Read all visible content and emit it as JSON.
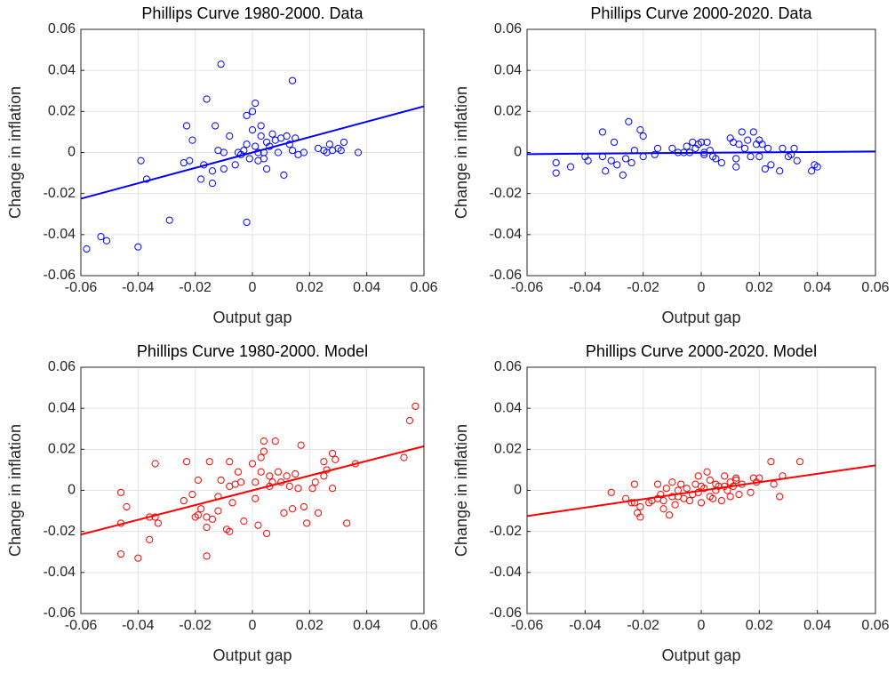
{
  "chart_data": [
    {
      "type": "scatter",
      "title": "Phillips Curve 1980-2000. Data",
      "x_label": "Output gap",
      "y_label": "Change in inflation",
      "xlim": [
        -0.06,
        0.06
      ],
      "ylim": [
        -0.06,
        0.06
      ],
      "xticks": [
        -0.06,
        -0.04,
        -0.02,
        0,
        0.02,
        0.04,
        0.06
      ],
      "yticks": [
        -0.06,
        -0.04,
        -0.02,
        0,
        0.02,
        0.04,
        0.06
      ],
      "grid": true,
      "points": {
        "color": "#0000ff",
        "x": [
          -0.058,
          -0.053,
          -0.051,
          -0.04,
          -0.039,
          -0.037,
          -0.029,
          -0.024,
          -0.023,
          -0.022,
          -0.021,
          -0.018,
          -0.017,
          -0.016,
          -0.014,
          -0.014,
          -0.013,
          -0.012,
          -0.011,
          -0.01,
          -0.01,
          -0.008,
          -0.006,
          -0.005,
          -0.004,
          -0.003,
          -0.002,
          -0.002,
          -0.002,
          -0.001,
          0.0,
          0.0,
          0.001,
          0.001,
          0.002,
          0.002,
          0.003,
          0.003,
          0.004,
          0.004,
          0.005,
          0.005,
          0.006,
          0.007,
          0.008,
          0.009,
          0.01,
          0.011,
          0.012,
          0.013,
          0.014,
          0.014,
          0.015,
          0.016,
          0.018,
          0.023,
          0.025,
          0.026,
          0.027,
          0.028,
          0.03,
          0.031,
          0.032,
          0.037
        ],
        "y": [
          -0.047,
          -0.041,
          -0.043,
          -0.046,
          -0.004,
          -0.013,
          -0.033,
          -0.005,
          0.013,
          -0.004,
          0.006,
          -0.013,
          -0.006,
          0.026,
          -0.015,
          -0.009,
          0.013,
          0.001,
          0.043,
          0.0,
          -0.008,
          0.008,
          -0.006,
          0.0,
          -0.001,
          0.001,
          0.018,
          -0.034,
          0.004,
          -0.003,
          0.011,
          0.02,
          0.024,
          0.003,
          0.0,
          -0.004,
          0.013,
          0.008,
          0.0,
          -0.003,
          0.005,
          -0.008,
          0.003,
          0.009,
          0.006,
          0.0,
          0.007,
          -0.011,
          0.008,
          0.004,
          0.035,
          0.001,
          0.007,
          -0.001,
          0.0,
          0.002,
          0.001,
          0.0,
          0.004,
          0.001,
          0.002,
          0.001,
          0.005,
          0.0
        ]
      },
      "fit": {
        "color": "#0000ff",
        "x": [
          -0.06,
          0.06
        ],
        "y": [
          -0.0225,
          0.0225
        ]
      }
    },
    {
      "type": "scatter",
      "title": "Phillips Curve 2000-2020. Data",
      "x_label": "Output gap",
      "y_label": "Change in inflation",
      "xlim": [
        -0.06,
        0.06
      ],
      "ylim": [
        -0.06,
        0.06
      ],
      "xticks": [
        -0.06,
        -0.04,
        -0.02,
        0,
        0.02,
        0.04,
        0.06
      ],
      "yticks": [
        -0.06,
        -0.04,
        -0.02,
        0,
        0.02,
        0.04,
        0.06
      ],
      "grid": true,
      "points": {
        "color": "#0000ff",
        "x": [
          -0.05,
          -0.05,
          -0.045,
          -0.04,
          -0.039,
          -0.034,
          -0.034,
          -0.033,
          -0.031,
          -0.03,
          -0.029,
          -0.027,
          -0.026,
          -0.025,
          -0.024,
          -0.023,
          -0.021,
          -0.02,
          -0.02,
          -0.016,
          -0.015,
          -0.01,
          -0.008,
          -0.006,
          -0.005,
          -0.004,
          -0.003,
          -0.002,
          -0.001,
          0.0,
          0.001,
          0.001,
          0.002,
          0.003,
          0.004,
          0.005,
          0.007,
          0.01,
          0.011,
          0.012,
          0.012,
          0.013,
          0.014,
          0.015,
          0.016,
          0.017,
          0.018,
          0.019,
          0.02,
          0.02,
          0.021,
          0.022,
          0.023,
          0.024,
          0.027,
          0.028,
          0.03,
          0.031,
          0.032,
          0.033,
          0.038,
          0.039,
          0.04
        ],
        "y": [
          -0.005,
          -0.01,
          -0.007,
          -0.002,
          -0.004,
          0.01,
          -0.002,
          -0.009,
          -0.004,
          0.005,
          -0.006,
          -0.011,
          -0.003,
          0.015,
          -0.005,
          0.001,
          0.011,
          0.008,
          -0.002,
          -0.001,
          0.002,
          0.002,
          0.0,
          0.0,
          0.003,
          0.0,
          0.005,
          0.002,
          0.004,
          0.005,
          0.0,
          -0.001,
          0.005,
          0.001,
          -0.002,
          -0.003,
          -0.005,
          0.007,
          0.005,
          -0.003,
          -0.007,
          0.004,
          0.01,
          0.002,
          0.006,
          -0.002,
          0.01,
          0.004,
          -0.002,
          0.006,
          0.004,
          -0.008,
          0.002,
          -0.006,
          -0.009,
          0.002,
          -0.002,
          -0.001,
          0.002,
          -0.004,
          -0.009,
          -0.006,
          -0.007
        ]
      },
      "fit": {
        "color": "#0000ff",
        "x": [
          -0.06,
          0.06
        ],
        "y": [
          -0.0008,
          0.0005
        ]
      }
    },
    {
      "type": "scatter",
      "title": "Phillips Curve 1980-2000. Model",
      "x_label": "Output gap",
      "y_label": "Change in inflation",
      "xlim": [
        -0.06,
        0.06
      ],
      "ylim": [
        -0.06,
        0.06
      ],
      "xticks": [
        -0.06,
        -0.04,
        -0.02,
        0,
        0.02,
        0.04,
        0.06
      ],
      "yticks": [
        -0.06,
        -0.04,
        -0.02,
        0,
        0.02,
        0.04,
        0.06
      ],
      "grid": true,
      "points": {
        "color": "#ff0000",
        "x": [
          -0.046,
          -0.046,
          -0.046,
          -0.044,
          -0.04,
          -0.036,
          -0.036,
          -0.034,
          -0.034,
          -0.033,
          -0.024,
          -0.023,
          -0.021,
          -0.02,
          -0.019,
          -0.019,
          -0.018,
          -0.016,
          -0.016,
          -0.016,
          -0.015,
          -0.014,
          -0.012,
          -0.012,
          -0.011,
          -0.009,
          -0.008,
          -0.008,
          -0.008,
          -0.007,
          -0.006,
          -0.005,
          -0.004,
          -0.003,
          0.0,
          0.001,
          0.001,
          0.002,
          0.003,
          0.003,
          0.004,
          0.004,
          0.005,
          0.006,
          0.006,
          0.007,
          0.008,
          0.009,
          0.01,
          0.011,
          0.012,
          0.013,
          0.014,
          0.015,
          0.016,
          0.017,
          0.018,
          0.019,
          0.021,
          0.022,
          0.023,
          0.025,
          0.025,
          0.026,
          0.028,
          0.028,
          0.029,
          0.033,
          0.036,
          0.053,
          0.055,
          0.057
        ],
        "y": [
          -0.001,
          -0.016,
          -0.031,
          -0.008,
          -0.033,
          -0.013,
          -0.024,
          0.013,
          -0.013,
          -0.016,
          -0.005,
          0.014,
          -0.002,
          -0.013,
          -0.012,
          0.005,
          -0.009,
          -0.018,
          -0.032,
          -0.013,
          0.014,
          -0.014,
          -0.003,
          -0.01,
          0.005,
          -0.019,
          -0.02,
          0.014,
          0.002,
          -0.006,
          0.003,
          0.009,
          0.004,
          -0.015,
          0.013,
          0.004,
          -0.004,
          -0.017,
          0.009,
          0.016,
          0.024,
          0.019,
          -0.021,
          0.002,
          0.007,
          0.004,
          0.024,
          0.009,
          0.004,
          -0.011,
          0.007,
          0.002,
          -0.009,
          0.008,
          0.001,
          0.022,
          -0.008,
          -0.016,
          0.001,
          0.004,
          -0.011,
          0.014,
          0.007,
          0.01,
          0.018,
          0.001,
          0.015,
          -0.016,
          0.013,
          0.016,
          0.034,
          0.041
        ]
      },
      "fit": {
        "color": "#ff0000",
        "x": [
          -0.06,
          0.06
        ],
        "y": [
          -0.0215,
          0.0215
        ]
      }
    },
    {
      "type": "scatter",
      "title": "Phillips Curve 2000-2020. Model",
      "x_label": "Output gap",
      "y_label": "Change in inflation",
      "xlim": [
        -0.06,
        0.06
      ],
      "ylim": [
        -0.06,
        0.06
      ],
      "xticks": [
        -0.06,
        -0.04,
        -0.02,
        0,
        0.02,
        0.04,
        0.06
      ],
      "yticks": [
        -0.06,
        -0.04,
        -0.02,
        0,
        0.02,
        0.04,
        0.06
      ],
      "grid": true,
      "points": {
        "color": "#ff0000",
        "x": [
          -0.031,
          -0.026,
          -0.024,
          -0.023,
          -0.023,
          -0.022,
          -0.021,
          -0.021,
          -0.018,
          -0.017,
          -0.015,
          -0.015,
          -0.014,
          -0.013,
          -0.013,
          -0.012,
          -0.011,
          -0.01,
          -0.01,
          -0.009,
          -0.008,
          -0.008,
          -0.007,
          -0.006,
          -0.005,
          -0.004,
          -0.003,
          -0.002,
          -0.001,
          -0.001,
          0.0,
          0.0,
          0.001,
          0.002,
          0.003,
          0.003,
          0.004,
          0.005,
          0.005,
          0.006,
          0.007,
          0.008,
          0.008,
          0.009,
          0.01,
          0.01,
          0.011,
          0.012,
          0.012,
          0.013,
          0.014,
          0.017,
          0.018,
          0.019,
          0.02,
          0.024,
          0.025,
          0.027,
          0.028,
          0.034
        ],
        "y": [
          -0.001,
          -0.004,
          -0.006,
          -0.006,
          0.003,
          -0.011,
          -0.013,
          -0.008,
          -0.006,
          -0.005,
          -0.004,
          0.003,
          -0.002,
          -0.009,
          -0.005,
          0.001,
          -0.012,
          -0.003,
          0.004,
          -0.007,
          0.0,
          -0.003,
          0.003,
          -0.004,
          0.001,
          -0.005,
          -0.002,
          0.003,
          0.007,
          -0.001,
          0.002,
          -0.006,
          0.001,
          0.009,
          0.005,
          -0.003,
          -0.004,
          0.003,
          0.0,
          0.002,
          -0.005,
          0.007,
          0.002,
          0.0,
          -0.003,
          0.004,
          0.002,
          0.006,
          0.005,
          -0.002,
          0.003,
          -0.001,
          0.006,
          0.004,
          0.006,
          0.014,
          0.003,
          -0.003,
          0.007,
          0.014
        ]
      },
      "fit": {
        "color": "#ff0000",
        "x": [
          -0.06,
          0.06
        ],
        "y": [
          -0.0125,
          0.0122
        ]
      }
    }
  ]
}
